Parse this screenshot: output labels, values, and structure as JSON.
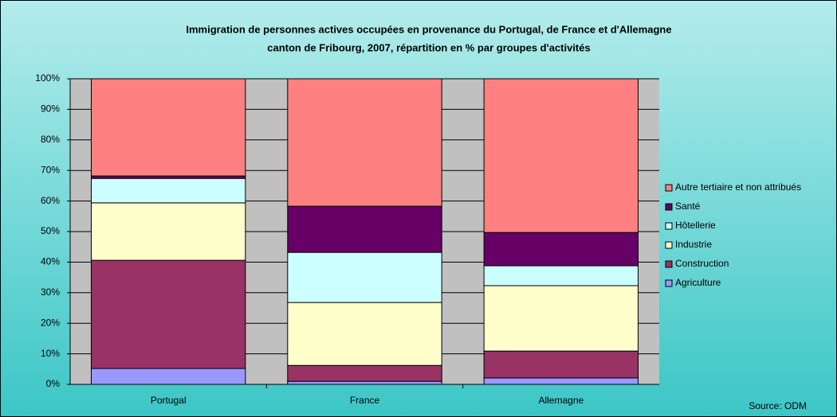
{
  "chart_data": {
    "type": "stacked_bar",
    "title": "Immigration de personnes actives occupées en provenance du Portugal, de France et d'Allemagne",
    "subtitle": "canton de Fribourg, 2007, répartition en % par groupes d'activités",
    "categories": [
      "Portugal",
      "France",
      "Allemagne"
    ],
    "series": [
      {
        "name": "Agriculture",
        "color": "#9999ff",
        "values": [
          5.2,
          1.0,
          2.1
        ]
      },
      {
        "name": "Construction",
        "color": "#993366",
        "values": [
          35.4,
          5.2,
          8.8
        ]
      },
      {
        "name": "Industrie",
        "color": "#ffffcc",
        "values": [
          18.8,
          20.6,
          21.4
        ]
      },
      {
        "name": "Hôtellerie",
        "color": "#ccffff",
        "values": [
          8.0,
          16.4,
          6.5
        ]
      },
      {
        "name": "Santé",
        "color": "#660066",
        "values": [
          0.8,
          15.1,
          10.9
        ]
      },
      {
        "name": "Autre tertiaire et non attribués",
        "color": "#ff8080",
        "values": [
          31.8,
          41.7,
          50.3
        ]
      }
    ],
    "ylim": [
      0,
      100
    ],
    "yticks": [
      {
        "value": 0,
        "label": "0%"
      },
      {
        "value": 10,
        "label": "10%"
      },
      {
        "value": 20,
        "label": "20%"
      },
      {
        "value": 30,
        "label": "30%"
      },
      {
        "value": 40,
        "label": "40%"
      },
      {
        "value": 50,
        "label": "50%"
      },
      {
        "value": 60,
        "label": "60%"
      },
      {
        "value": 70,
        "label": "70%"
      },
      {
        "value": 80,
        "label": "80%"
      },
      {
        "value": 90,
        "label": "90%"
      },
      {
        "value": 100,
        "label": "100%"
      }
    ],
    "grid": true,
    "legend": "right",
    "source": "Source: ODM"
  }
}
